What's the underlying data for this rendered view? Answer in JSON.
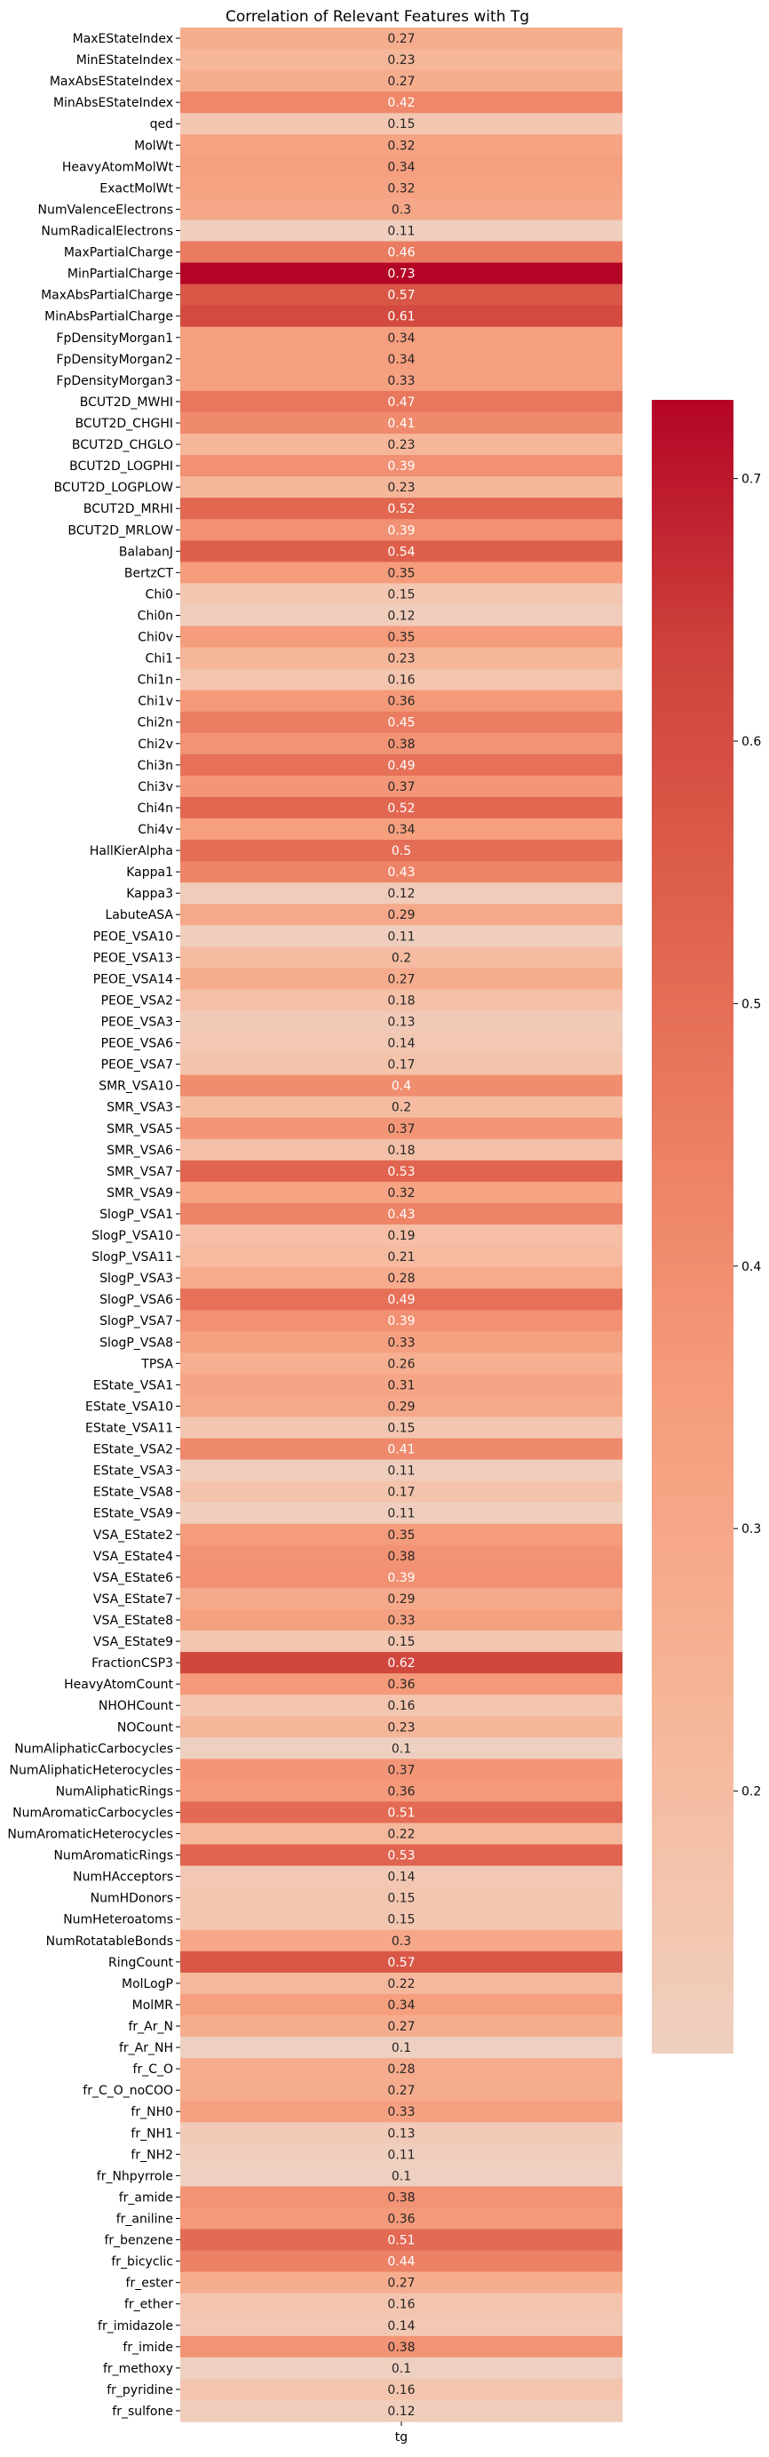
{
  "chart_data": {
    "type": "heatmap",
    "title": "Correlation of Relevant Features with Tg",
    "x_categories": [
      "tg"
    ],
    "y_categories": [
      "MaxEStateIndex",
      "MinEStateIndex",
      "MaxAbsEStateIndex",
      "MinAbsEStateIndex",
      "qed",
      "MolWt",
      "HeavyAtomMolWt",
      "ExactMolWt",
      "NumValenceElectrons",
      "NumRadicalElectrons",
      "MaxPartialCharge",
      "MinPartialCharge",
      "MaxAbsPartialCharge",
      "MinAbsPartialCharge",
      "FpDensityMorgan1",
      "FpDensityMorgan2",
      "FpDensityMorgan3",
      "BCUT2D_MWHI",
      "BCUT2D_CHGHI",
      "BCUT2D_CHGLO",
      "BCUT2D_LOGPHI",
      "BCUT2D_LOGPLOW",
      "BCUT2D_MRHI",
      "BCUT2D_MRLOW",
      "BalabanJ",
      "BertzCT",
      "Chi0",
      "Chi0n",
      "Chi0v",
      "Chi1",
      "Chi1n",
      "Chi1v",
      "Chi2n",
      "Chi2v",
      "Chi3n",
      "Chi3v",
      "Chi4n",
      "Chi4v",
      "HallKierAlpha",
      "Kappa1",
      "Kappa3",
      "LabuteASA",
      "PEOE_VSA10",
      "PEOE_VSA13",
      "PEOE_VSA14",
      "PEOE_VSA2",
      "PEOE_VSA3",
      "PEOE_VSA6",
      "PEOE_VSA7",
      "SMR_VSA10",
      "SMR_VSA3",
      "SMR_VSA5",
      "SMR_VSA6",
      "SMR_VSA7",
      "SMR_VSA9",
      "SlogP_VSA1",
      "SlogP_VSA10",
      "SlogP_VSA11",
      "SlogP_VSA3",
      "SlogP_VSA6",
      "SlogP_VSA7",
      "SlogP_VSA8",
      "TPSA",
      "EState_VSA1",
      "EState_VSA10",
      "EState_VSA11",
      "EState_VSA2",
      "EState_VSA3",
      "EState_VSA8",
      "EState_VSA9",
      "VSA_EState2",
      "VSA_EState4",
      "VSA_EState6",
      "VSA_EState7",
      "VSA_EState8",
      "VSA_EState9",
      "FractionCSP3",
      "HeavyAtomCount",
      "NHOHCount",
      "NOCount",
      "NumAliphaticCarbocycles",
      "NumAliphaticHeterocycles",
      "NumAliphaticRings",
      "NumAromaticCarbocycles",
      "NumAromaticHeterocycles",
      "NumAromaticRings",
      "NumHAcceptors",
      "NumHDonors",
      "NumHeteroatoms",
      "NumRotatableBonds",
      "RingCount",
      "MolLogP",
      "MolMR",
      "fr_Ar_N",
      "fr_Ar_NH",
      "fr_C_O",
      "fr_C_O_noCOO",
      "fr_NH0",
      "fr_NH1",
      "fr_NH2",
      "fr_Nhpyrrole",
      "fr_amide",
      "fr_aniline",
      "fr_benzene",
      "fr_bicyclic",
      "fr_ester",
      "fr_ether",
      "fr_imidazole",
      "fr_imide",
      "fr_methoxy",
      "fr_pyridine",
      "fr_sulfone"
    ],
    "values": [
      0.27,
      0.23,
      0.27,
      0.42,
      0.15,
      0.32,
      0.34,
      0.32,
      0.3,
      0.11,
      0.46,
      0.73,
      0.57,
      0.61,
      0.34,
      0.34,
      0.33,
      0.47,
      0.41,
      0.23,
      0.39,
      0.23,
      0.52,
      0.39,
      0.54,
      0.35,
      0.15,
      0.12,
      0.35,
      0.23,
      0.16,
      0.36,
      0.45,
      0.38,
      0.49,
      0.37,
      0.52,
      0.34,
      0.5,
      0.43,
      0.12,
      0.29,
      0.11,
      0.2,
      0.27,
      0.18,
      0.13,
      0.14,
      0.17,
      0.4,
      0.2,
      0.37,
      0.18,
      0.53,
      0.32,
      0.43,
      0.19,
      0.21,
      0.28,
      0.49,
      0.39,
      0.33,
      0.26,
      0.31,
      0.29,
      0.15,
      0.41,
      0.11,
      0.17,
      0.11,
      0.35,
      0.38,
      0.39,
      0.29,
      0.33,
      0.15,
      0.62,
      0.36,
      0.16,
      0.23,
      0.1,
      0.37,
      0.36,
      0.51,
      0.22,
      0.53,
      0.14,
      0.15,
      0.15,
      0.3,
      0.57,
      0.22,
      0.34,
      0.27,
      0.1,
      0.28,
      0.27,
      0.33,
      0.13,
      0.11,
      0.1,
      0.38,
      0.36,
      0.51,
      0.44,
      0.27,
      0.16,
      0.14,
      0.38,
      0.1,
      0.16,
      0.12
    ],
    "colorbar": {
      "vmin": 0.1,
      "vmax": 0.73,
      "ticks": [
        0.2,
        0.3,
        0.4,
        0.5,
        0.6,
        0.7
      ],
      "colormap": "coolwarm (upper half)",
      "low_color": "#eed0c0",
      "high_color": "#b40426"
    },
    "annotated": true,
    "grid": false,
    "legend": "colorbar-right"
  }
}
